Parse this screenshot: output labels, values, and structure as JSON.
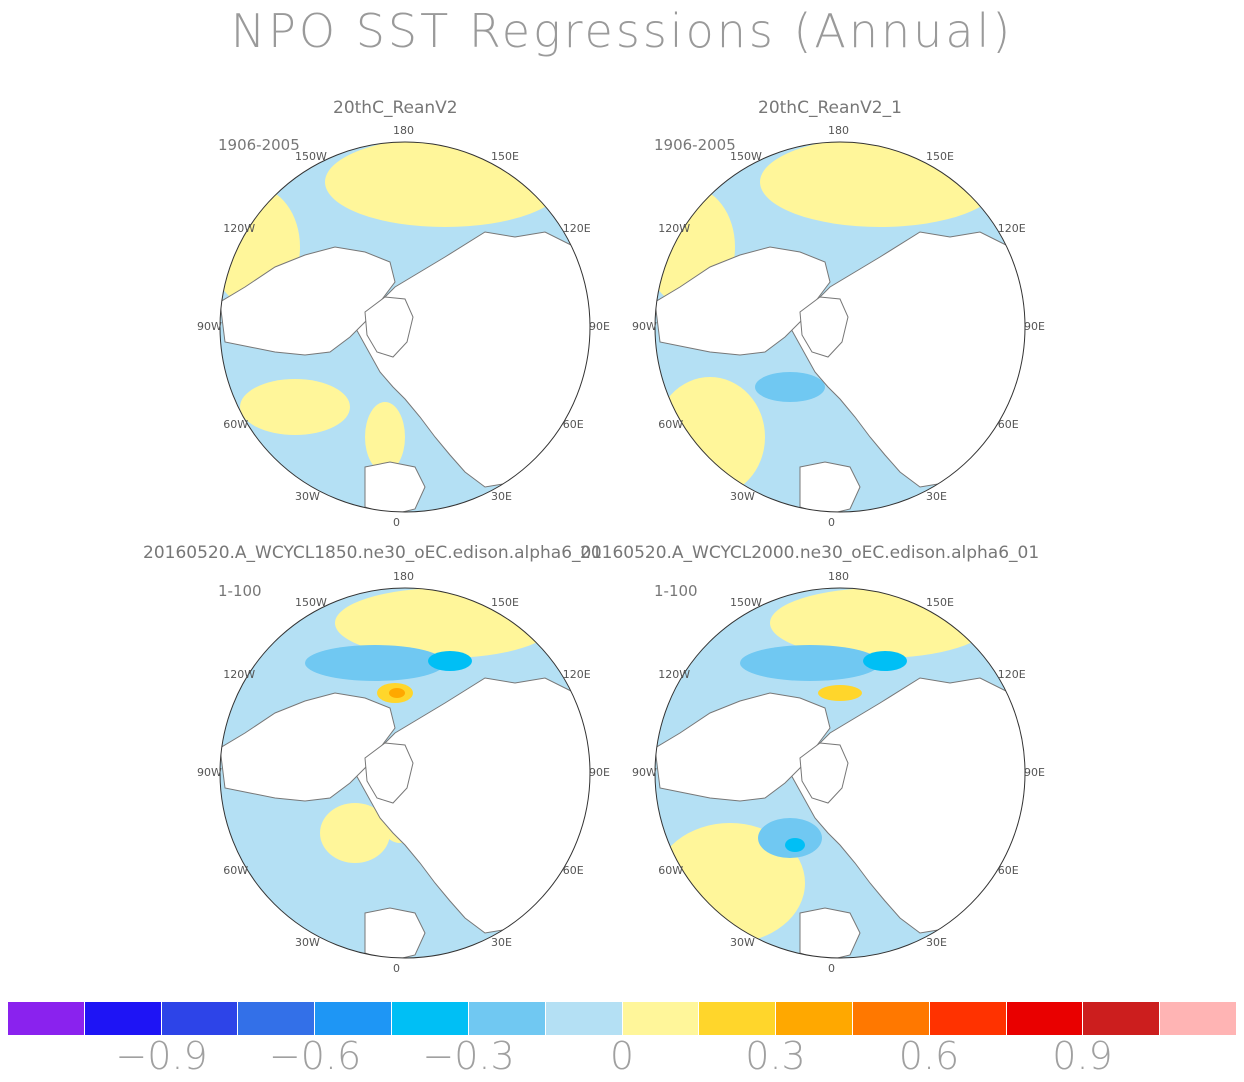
{
  "chart_data": {
    "type": "heatmap",
    "title": "NPO SST Regressions (Annual)",
    "projection": "north polar stereographic",
    "longitude_labels": [
      "180",
      "150E",
      "120E",
      "90E",
      "60E",
      "30E",
      "0",
      "30W",
      "60W",
      "90W",
      "120W",
      "150W"
    ],
    "panels": [
      {
        "name": "20thC_ReanV2",
        "period": "1906-2005"
      },
      {
        "name": "20thC_ReanV2_1",
        "period": "1906-2005"
      },
      {
        "name": "20160520.A_WCYCL1850.ne30_oEC.edison.alpha6_01",
        "period": "1-100"
      },
      {
        "name": "20160520.A_WCYCL2000.ne30_oEC.edison.alpha6_01",
        "period": "1-100"
      }
    ],
    "colorbar": {
      "levels": [
        -1.05,
        -0.9,
        -0.75,
        -0.6,
        -0.45,
        -0.3,
        -0.15,
        0,
        0.15,
        0.3,
        0.45,
        0.6,
        0.75,
        0.9,
        1.05
      ],
      "colors": [
        "#8a22ee",
        "#1e14f5",
        "#2d44e8",
        "#3370e8",
        "#1e96f5",
        "#00bff5",
        "#70c8f2",
        "#b4e0f4",
        "#fff69a",
        "#ffd62b",
        "#ffa800",
        "#ff7800",
        "#ff3200",
        "#e90000",
        "#cc1e1e",
        "#ffb4b4"
      ],
      "tick_labels": [
        "−0.9",
        "−0.6",
        "−0.3",
        "0",
        "0.3",
        "0.6",
        "0.9"
      ]
    }
  }
}
